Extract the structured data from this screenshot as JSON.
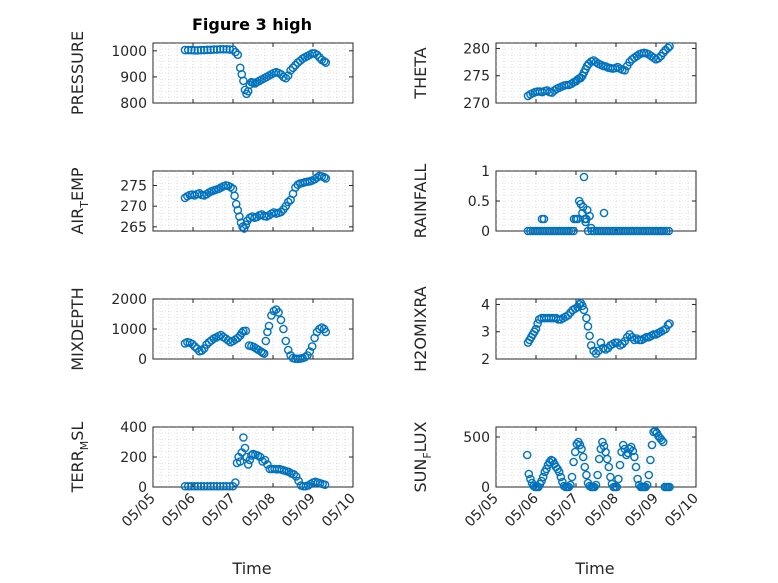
{
  "figure": {
    "title": "Figure 3 high",
    "marker_color": "#0072BD",
    "x_ticks": [
      "05/05",
      "05/06",
      "05/07",
      "05/08",
      "05/09",
      "05/10"
    ],
    "x_label": "Time",
    "grid": true,
    "minor_grid": true
  },
  "chart_data": [
    {
      "type": "scatter",
      "ylabel": "PRESSURE",
      "xlim": [
        0,
        5
      ],
      "ylim": [
        800,
        1030
      ],
      "yticks": [
        800,
        900,
        1000
      ],
      "title": "Figure 3 high",
      "x": [
        0.8,
        0.88,
        0.96,
        1.04,
        1.12,
        1.2,
        1.28,
        1.36,
        1.44,
        1.52,
        1.6,
        1.68,
        1.76,
        1.84,
        1.92,
        2,
        2.06,
        2.12,
        2.18,
        2.22,
        2.26,
        2.3,
        2.34,
        2.38,
        2.42,
        2.46,
        2.5,
        2.55,
        2.6,
        2.66,
        2.72,
        2.78,
        2.84,
        2.9,
        2.96,
        3.02,
        3.08,
        3.14,
        3.2,
        3.26,
        3.32,
        3.38,
        3.44,
        3.5,
        3.56,
        3.62,
        3.68,
        3.74,
        3.8,
        3.86,
        3.92,
        3.98,
        4.04,
        4.1,
        4.16,
        4.22,
        4.28,
        4.32
      ],
      "y": [
        1003,
        1003,
        1003,
        1002,
        1002,
        1003,
        1003,
        1004,
        1004,
        1005,
        1005,
        1006,
        1006,
        1006,
        1005,
        1005,
        995,
        985,
        935,
        910,
        885,
        850,
        835,
        845,
        870,
        880,
        878,
        875,
        880,
        885,
        890,
        895,
        900,
        905,
        910,
        915,
        918,
        915,
        910,
        900,
        895,
        905,
        925,
        935,
        945,
        955,
        962,
        970,
        975,
        980,
        985,
        990,
        990,
        985,
        975,
        965,
        960,
        955
      ]
    },
    {
      "type": "scatter",
      "ylabel": "THETA",
      "xlim": [
        0,
        5
      ],
      "ylim": [
        270,
        281
      ],
      "yticks": [
        270,
        275,
        280
      ],
      "x": [
        0.8,
        0.86,
        0.92,
        0.98,
        1.04,
        1.1,
        1.16,
        1.22,
        1.28,
        1.34,
        1.4,
        1.46,
        1.52,
        1.58,
        1.64,
        1.7,
        1.76,
        1.82,
        1.88,
        1.94,
        2,
        2.04,
        2.08,
        2.12,
        2.16,
        2.2,
        2.24,
        2.28,
        2.32,
        2.38,
        2.44,
        2.5,
        2.56,
        2.62,
        2.68,
        2.74,
        2.8,
        2.86,
        2.92,
        2.98,
        3.04,
        3.1,
        3.16,
        3.22,
        3.28,
        3.34,
        3.4,
        3.46,
        3.52,
        3.58,
        3.64,
        3.7,
        3.76,
        3.82,
        3.88,
        3.94,
        4,
        4.06,
        4.12,
        4.18,
        4.24,
        4.3,
        4.34
      ],
      "y": [
        271.3,
        271.6,
        271.8,
        272,
        272.1,
        272.1,
        272,
        272.2,
        272.3,
        272,
        271.9,
        272.3,
        272.6,
        272.8,
        273,
        273.2,
        273.3,
        273.3,
        273.5,
        273.8,
        274,
        274.3,
        274.5,
        274.6,
        275,
        275.6,
        276.2,
        276.8,
        277.2,
        277.6,
        277.8,
        277.5,
        277.2,
        277,
        276.8,
        276.7,
        276.5,
        276.4,
        276.3,
        276.4,
        276.6,
        276.3,
        276.1,
        276,
        276.8,
        277.5,
        278,
        278.3,
        278.6,
        278.9,
        279.1,
        279.2,
        279.1,
        278.9,
        278.6,
        278.3,
        278,
        278.2,
        278.6,
        279.2,
        279.7,
        280.1,
        280.4
      ]
    },
    {
      "type": "scatter",
      "ylabel": "AIR_TEMP",
      "ylabel_parts": [
        "AIR",
        "T",
        "EMP"
      ],
      "xlim": [
        0,
        5
      ],
      "ylim": [
        264,
        278.5
      ],
      "yticks": [
        265,
        270,
        275
      ],
      "x": [
        0.8,
        0.86,
        0.92,
        0.98,
        1.04,
        1.1,
        1.16,
        1.22,
        1.28,
        1.34,
        1.4,
        1.46,
        1.52,
        1.58,
        1.64,
        1.7,
        1.76,
        1.82,
        1.88,
        1.94,
        2,
        2.04,
        2.08,
        2.12,
        2.16,
        2.2,
        2.24,
        2.28,
        2.32,
        2.36,
        2.42,
        2.48,
        2.54,
        2.6,
        2.66,
        2.72,
        2.78,
        2.84,
        2.9,
        2.96,
        3.02,
        3.08,
        3.14,
        3.2,
        3.26,
        3.32,
        3.38,
        3.44,
        3.5,
        3.56,
        3.62,
        3.68,
        3.74,
        3.8,
        3.86,
        3.92,
        3.98,
        4.04,
        4.1,
        4.16,
        4.22,
        4.28,
        4.32
      ],
      "y": [
        272,
        272.4,
        272.7,
        272.8,
        272.6,
        272.9,
        273.1,
        272.7,
        272.6,
        272.9,
        273.3,
        273.6,
        273.8,
        274,
        274.2,
        274.5,
        274.8,
        275,
        274.9,
        274.6,
        274.2,
        272.5,
        270.5,
        269,
        267.5,
        266,
        265,
        264.6,
        265.5,
        266.5,
        267.2,
        267.5,
        267.2,
        267.4,
        267.8,
        268,
        267.6,
        267.5,
        267.8,
        268.2,
        268.5,
        268.2,
        268.4,
        268.6,
        269.2,
        270,
        271,
        271.5,
        273,
        274.5,
        275.2,
        275.5,
        275.6,
        275.8,
        275.9,
        276,
        276.2,
        276.5,
        276.9,
        277.3,
        277.2,
        277,
        276.7
      ]
    },
    {
      "type": "scatter",
      "ylabel": "RAINFALL",
      "xlim": [
        0,
        5
      ],
      "ylim": [
        0,
        1
      ],
      "yticks": [
        0,
        0.5,
        1
      ],
      "x": [
        0.8,
        0.86,
        0.92,
        0.98,
        1.04,
        1.1,
        1.16,
        1.22,
        1.28,
        1.34,
        1.4,
        1.46,
        1.52,
        1.58,
        1.64,
        1.7,
        1.76,
        1.82,
        1.88,
        1.94,
        1.95,
        2,
        2.04,
        2.08,
        2.12,
        2.16,
        2.18,
        2.2,
        2.22,
        2.24,
        2.26,
        2.28,
        2.3,
        2.34,
        2.4,
        2.46,
        2.52,
        2.58,
        2.64,
        2.7,
        2.76,
        2.82,
        2.88,
        2.94,
        3,
        3.06,
        3.12,
        3.18,
        3.24,
        3.3,
        3.36,
        3.42,
        3.48,
        3.54,
        3.6,
        3.66,
        3.72,
        3.78,
        3.84,
        3.9,
        3.96,
        4.02,
        4.08,
        4.14,
        4.2,
        4.26,
        4.32,
        1.15,
        1.2,
        2.38,
        2.7
      ],
      "y": [
        0,
        0,
        0,
        0,
        0,
        0,
        0,
        0,
        0,
        0,
        0,
        0,
        0,
        0,
        0,
        0,
        0,
        0,
        0,
        0,
        0.2,
        0.2,
        0.2,
        0.5,
        0.45,
        0.3,
        0.4,
        0.9,
        0.2,
        0.15,
        0.2,
        0.35,
        0,
        0.25,
        0,
        0,
        0,
        0,
        0,
        0,
        0,
        0,
        0,
        0,
        0,
        0,
        0,
        0,
        0,
        0,
        0,
        0,
        0,
        0,
        0,
        0,
        0,
        0,
        0,
        0,
        0,
        0,
        0,
        0,
        0,
        0,
        0,
        0.2,
        0.2,
        0.05,
        0.3
      ]
    },
    {
      "type": "scatter",
      "ylabel": "MIXDEPTH",
      "xlim": [
        0,
        5
      ],
      "ylim": [
        0,
        2000
      ],
      "yticks": [
        0,
        1000,
        2000
      ],
      "x": [
        0.8,
        0.86,
        0.92,
        0.98,
        1.04,
        1.1,
        1.16,
        1.22,
        1.28,
        1.34,
        1.4,
        1.46,
        1.52,
        1.58,
        1.64,
        1.7,
        1.76,
        1.82,
        1.88,
        1.94,
        2,
        2.06,
        2.12,
        2.18,
        2.22,
        2.26,
        2.32,
        2.4,
        2.46,
        2.52,
        2.58,
        2.64,
        2.7,
        2.74,
        2.78,
        2.82,
        2.86,
        2.9,
        2.96,
        3.02,
        3.08,
        3.14,
        3.2,
        3.26,
        3.32,
        3.38,
        3.44,
        3.5,
        3.56,
        3.62,
        3.68,
        3.74,
        3.8,
        3.86,
        3.92,
        3.98,
        4.04,
        4.1,
        4.16,
        4.22,
        4.28,
        4.32
      ],
      "y": [
        520,
        560,
        540,
        500,
        420,
        350,
        260,
        280,
        350,
        480,
        560,
        620,
        680,
        720,
        760,
        800,
        730,
        680,
        620,
        560,
        600,
        650,
        700,
        780,
        870,
        930,
        940,
        450,
        430,
        400,
        350,
        300,
        250,
        210,
        180,
        600,
        900,
        1100,
        1450,
        1600,
        1650,
        1550,
        1300,
        1000,
        600,
        300,
        120,
        30,
        10,
        5,
        15,
        30,
        60,
        120,
        250,
        420,
        700,
        900,
        1000,
        1050,
        1000,
        900
      ]
    },
    {
      "type": "scatter",
      "ylabel": "H2OMIXRA",
      "xlim": [
        0,
        5
      ],
      "ylim": [
        2,
        4.2
      ],
      "yticks": [
        2,
        3,
        4
      ],
      "x": [
        0.8,
        0.84,
        0.88,
        0.92,
        0.96,
        1,
        1.04,
        1.08,
        1.14,
        1.2,
        1.26,
        1.32,
        1.38,
        1.44,
        1.5,
        1.56,
        1.62,
        1.68,
        1.74,
        1.8,
        1.86,
        1.92,
        1.98,
        2.04,
        2.08,
        2.12,
        2.16,
        2.2,
        2.26,
        2.3,
        2.34,
        2.38,
        2.44,
        2.5,
        2.56,
        2.62,
        2.68,
        2.74,
        2.8,
        2.86,
        2.92,
        2.98,
        3.04,
        3.1,
        3.16,
        3.22,
        3.28,
        3.34,
        3.4,
        3.46,
        3.52,
        3.58,
        3.64,
        3.7,
        3.76,
        3.82,
        3.88,
        3.94,
        4,
        4.06,
        4.12,
        4.18,
        4.24,
        4.3,
        4.34
      ],
      "y": [
        2.6,
        2.7,
        2.8,
        2.9,
        3,
        3.1,
        3.3,
        3.45,
        3.5,
        3.5,
        3.5,
        3.5,
        3.5,
        3.5,
        3.5,
        3.45,
        3.45,
        3.5,
        3.55,
        3.6,
        3.7,
        3.8,
        3.85,
        3.9,
        4,
        4.05,
        3.95,
        3.8,
        3.5,
        3.2,
        2.85,
        2.5,
        2.3,
        2.2,
        2.3,
        2.6,
        2.4,
        2.35,
        2.4,
        2.5,
        2.55,
        2.6,
        2.6,
        2.5,
        2.55,
        2.65,
        2.8,
        2.9,
        2.8,
        2.7,
        2.75,
        2.7,
        2.7,
        2.75,
        2.8,
        2.8,
        2.85,
        2.9,
        2.9,
        2.95,
        3,
        3.05,
        3.1,
        3.25,
        3.3
      ]
    },
    {
      "type": "scatter",
      "ylabel": "TERR_MSL",
      "ylabel_parts": [
        "TERR",
        "M",
        "SL"
      ],
      "xlim": [
        0,
        5
      ],
      "ylim": [
        0,
        400
      ],
      "yticks": [
        0,
        200,
        400
      ],
      "x": [
        0.8,
        0.88,
        0.96,
        1.04,
        1.12,
        1.2,
        1.28,
        1.36,
        1.44,
        1.52,
        1.6,
        1.68,
        1.76,
        1.84,
        1.92,
        2,
        2.06,
        2.1,
        2.14,
        2.18,
        2.22,
        2.26,
        2.3,
        2.34,
        2.38,
        2.42,
        2.46,
        2.5,
        2.56,
        2.62,
        2.68,
        2.74,
        2.8,
        2.86,
        2.92,
        2.98,
        3.04,
        3.1,
        3.16,
        3.22,
        3.28,
        3.34,
        3.4,
        3.46,
        3.52,
        3.58,
        3.64,
        3.7,
        3.76,
        3.82,
        3.88,
        3.94,
        4,
        4.06,
        4.12,
        4.18,
        4.24,
        4.3
      ],
      "y": [
        5,
        5,
        5,
        5,
        5,
        5,
        5,
        5,
        5,
        5,
        5,
        5,
        5,
        5,
        5,
        5,
        30,
        160,
        200,
        170,
        230,
        330,
        260,
        200,
        150,
        180,
        210,
        220,
        215,
        210,
        200,
        170,
        180,
        150,
        120,
        120,
        120,
        118,
        120,
        115,
        110,
        105,
        100,
        90,
        85,
        70,
        40,
        10,
        5,
        5,
        10,
        20,
        30,
        35,
        30,
        25,
        20,
        15
      ]
    },
    {
      "type": "scatter",
      "ylabel": "SUN_FLUX",
      "ylabel_parts": [
        "SUN",
        "F",
        "LUX"
      ],
      "xlim": [
        0,
        5
      ],
      "ylim": [
        0,
        600
      ],
      "yticks": [
        0,
        500
      ],
      "x": [
        0.78,
        0.82,
        0.86,
        0.9,
        0.94,
        0.98,
        1.02,
        1.06,
        1.1,
        1.14,
        1.18,
        1.22,
        1.26,
        1.3,
        1.34,
        1.38,
        1.42,
        1.46,
        1.5,
        1.54,
        1.58,
        1.62,
        1.66,
        1.7,
        1.74,
        1.78,
        1.82,
        1.86,
        1.9,
        1.94,
        1.98,
        2.02,
        2.06,
        2.1,
        2.14,
        2.18,
        2.22,
        2.26,
        2.3,
        2.34,
        2.38,
        2.42,
        2.46,
        2.5,
        2.54,
        2.58,
        2.62,
        2.66,
        2.7,
        2.74,
        2.78,
        2.82,
        2.86,
        2.9,
        2.94,
        2.98,
        3.02,
        3.06,
        3.1,
        3.14,
        3.18,
        3.22,
        3.26,
        3.3,
        3.34,
        3.38,
        3.42,
        3.46,
        3.5,
        3.54,
        3.58,
        3.62,
        3.66,
        3.7,
        3.74,
        3.78,
        3.82,
        3.86,
        3.9,
        3.94,
        3.98,
        4.02,
        4.06,
        4.1,
        4.14,
        4.18,
        4.22,
        4.26,
        4.3,
        4.34
      ],
      "y": [
        320,
        130,
        80,
        40,
        10,
        0,
        0,
        0,
        30,
        60,
        100,
        150,
        180,
        220,
        250,
        270,
        260,
        230,
        200,
        180,
        150,
        100,
        50,
        10,
        0,
        0,
        0,
        20,
        100,
        250,
        350,
        430,
        450,
        420,
        380,
        300,
        200,
        120,
        40,
        10,
        0,
        0,
        0,
        20,
        120,
        280,
        380,
        450,
        410,
        350,
        280,
        200,
        100,
        30,
        0,
        0,
        0,
        80,
        220,
        350,
        420,
        380,
        320,
        340,
        380,
        400,
        360,
        300,
        200,
        80,
        20,
        0,
        0,
        0,
        0,
        20,
        120,
        270,
        420,
        550,
        560,
        540,
        510,
        490,
        470,
        450,
        0,
        0,
        0,
        0
      ]
    }
  ]
}
